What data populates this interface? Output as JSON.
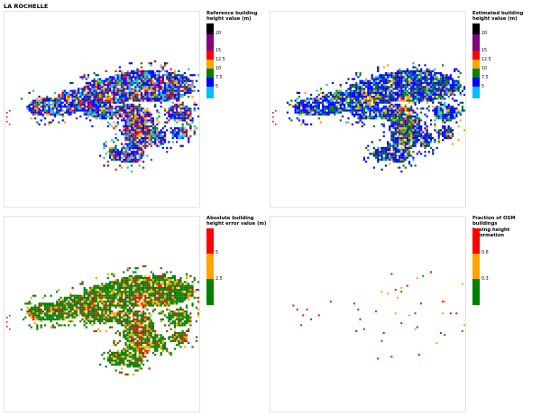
{
  "page_title": "LA ROCHELLE",
  "panels": [
    {
      "legend_title": "Reference building\nheight value (m)",
      "bands": [
        "#000000",
        "#800080",
        "#ff0000",
        "#ffa500",
        "#008000",
        "#0000ff",
        "#00bfff"
      ],
      "ticks": [
        "20",
        "15",
        "12.5",
        "10",
        "7.5",
        "5"
      ],
      "palette": [
        "#0000ff",
        "#0000ff",
        "#0000ff",
        "#0000ff",
        "#00bfff",
        "#00bfff",
        "#008000",
        "#ffa500",
        "#ff0000",
        "#800080"
      ],
      "hot_palette": [
        "#ffa500",
        "#ff0000",
        "#008000",
        "#0000ff",
        "#ffa500",
        "#800080"
      ]
    },
    {
      "legend_title": "Estimated building\nheight value (m)",
      "bands": [
        "#000000",
        "#800080",
        "#ff0000",
        "#ffa500",
        "#008000",
        "#0000ff",
        "#00bfff"
      ],
      "ticks": [
        "20",
        "15",
        "12.5",
        "10",
        "7.5",
        "5"
      ],
      "palette": [
        "#0000ff",
        "#0000ff",
        "#0000ff",
        "#0000ff",
        "#0000ff",
        "#008000",
        "#008000",
        "#ffa500",
        "#0000ff",
        "#00bfff"
      ],
      "hot_palette": [
        "#ffa500",
        "#008000",
        "#ffa500",
        "#0000ff",
        "#ff0000",
        "#008000"
      ]
    },
    {
      "legend_title": "Absolute building\nheight error value (m)",
      "bands": [
        "#ff0000",
        "#ffa500",
        "#008000"
      ],
      "ticks": [
        "5",
        "2.5"
      ],
      "palette": [
        "#008000",
        "#008000",
        "#008000",
        "#008000",
        "#008000",
        "#008000",
        "#ffa500",
        "#ffa500",
        "#ff0000",
        "#008000"
      ],
      "hot_palette": [
        "#ffa500",
        "#ff0000",
        "#008000",
        "#ffa500",
        "#ff0000",
        "#008000"
      ]
    },
    {
      "legend_title": "Fraction of OSM buildings\nhaving height information",
      "bands": [
        "#ff0000",
        "#ffa500",
        "#008000"
      ],
      "ticks": [
        "0.6",
        "0.3"
      ],
      "palette": [
        "#ff0000",
        "#ff0000",
        "#ffa500",
        "#008000"
      ],
      "hot_palette": [
        "#ff0000",
        "#ff0000",
        "#ffa500"
      ]
    }
  ]
}
